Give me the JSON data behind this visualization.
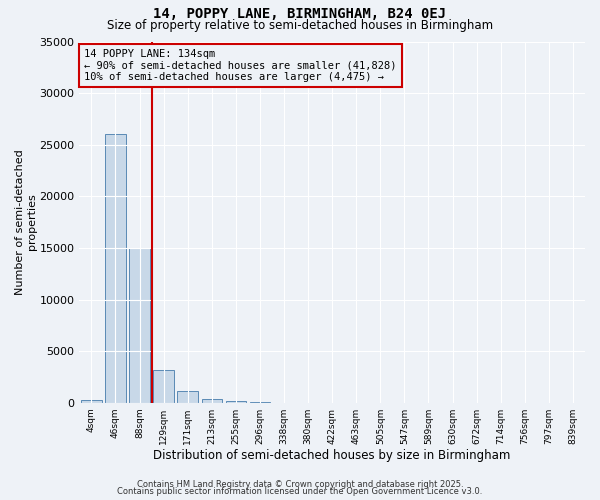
{
  "title": "14, POPPY LANE, BIRMINGHAM, B24 0EJ",
  "subtitle": "Size of property relative to semi-detached houses in Birmingham",
  "xlabel": "Distribution of semi-detached houses by size in Birmingham",
  "ylabel": "Number of semi-detached\nproperties",
  "categories": [
    "4sqm",
    "46sqm",
    "88sqm",
    "129sqm",
    "171sqm",
    "213sqm",
    "255sqm",
    "296sqm",
    "338sqm",
    "380sqm",
    "422sqm",
    "463sqm",
    "505sqm",
    "547sqm",
    "589sqm",
    "630sqm",
    "672sqm",
    "714sqm",
    "756sqm",
    "797sqm",
    "839sqm"
  ],
  "values": [
    300,
    26000,
    15000,
    3200,
    1100,
    400,
    150,
    50,
    0,
    0,
    0,
    0,
    0,
    0,
    0,
    0,
    0,
    0,
    0,
    0,
    0
  ],
  "bar_color": "#c8d8e8",
  "bar_edge_color": "#5a8ab5",
  "vline_color": "#cc0000",
  "vline_x": 2.5,
  "annotation_line1": "14 POPPY LANE: 134sqm",
  "annotation_line2": "← 90% of semi-detached houses are smaller (41,828)",
  "annotation_line3": "10% of semi-detached houses are larger (4,475) →",
  "ylim": [
    0,
    35000
  ],
  "yticks": [
    0,
    5000,
    10000,
    15000,
    20000,
    25000,
    30000,
    35000
  ],
  "background_color": "#eef2f7",
  "grid_color": "#ffffff",
  "footer1": "Contains HM Land Registry data © Crown copyright and database right 2025.",
  "footer2": "Contains public sector information licensed under the Open Government Licence v3.0."
}
